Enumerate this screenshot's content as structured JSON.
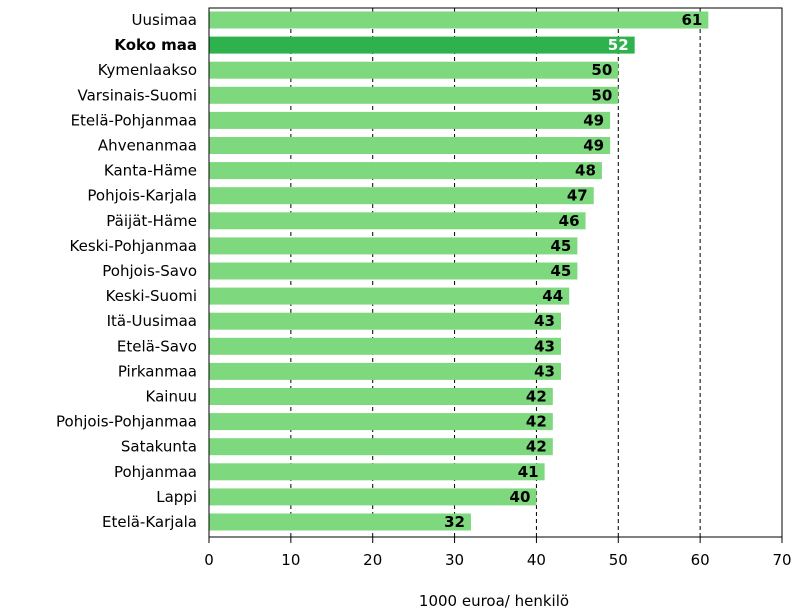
{
  "chart_data": {
    "type": "bar",
    "orientation": "horizontal",
    "categories": [
      "Uusimaa",
      "Koko maa",
      "Kymenlaakso",
      "Varsinais-Suomi",
      "Etelä-Pohjanmaa",
      "Ahvenanmaa",
      "Kanta-Häme",
      "Pohjois-Karjala",
      "Päijät-Häme",
      "Keski-Pohjanmaa",
      "Pohjois-Savo",
      "Keski-Suomi",
      "Itä-Uusimaa",
      "Etelä-Savo",
      "Pirkanmaa",
      "Kainuu",
      "Pohjois-Pohjanmaa",
      "Satakunta",
      "Pohjanmaa",
      "Lappi",
      "Etelä-Karjala"
    ],
    "values": [
      61,
      52,
      50,
      50,
      49,
      49,
      48,
      47,
      46,
      45,
      45,
      44,
      43,
      43,
      43,
      42,
      42,
      42,
      41,
      40,
      32
    ],
    "highlight_category": "Koko maa",
    "xlabel": "1000 euroa/ henkilö",
    "xlim": [
      0,
      70
    ],
    "xticks": [
      0,
      10,
      20,
      30,
      40,
      50,
      60,
      70
    ],
    "grid": "vertical dashed",
    "colors": {
      "bar": "#7ed87e",
      "highlight_bar": "#2eb24e",
      "highlight_label": "#ffffff",
      "label": "#000000"
    }
  }
}
